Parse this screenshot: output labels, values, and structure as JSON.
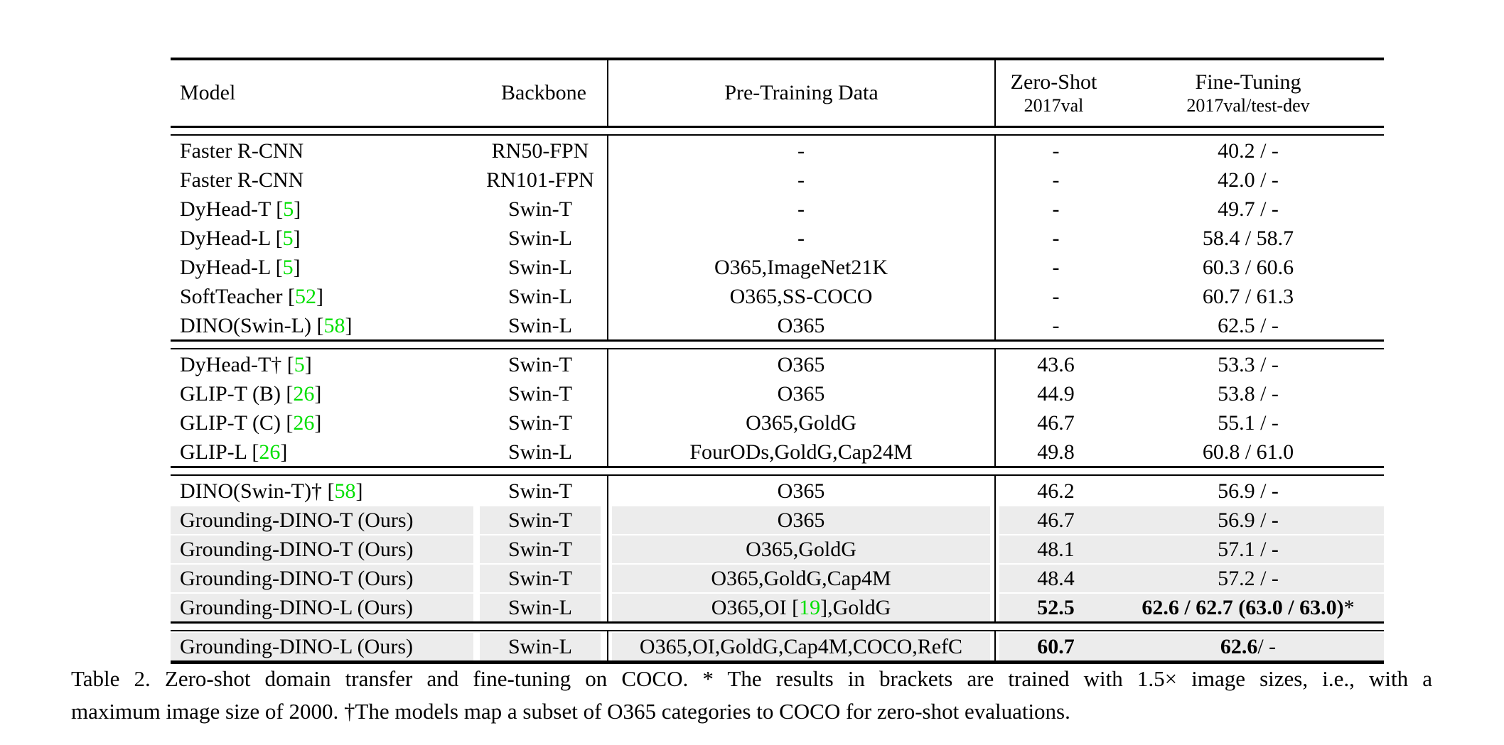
{
  "colors": {
    "citation": "#00E000",
    "row_shade": "#ECECEC",
    "text": "#000000",
    "background": "#FFFFFF"
  },
  "table": {
    "columns": [
      {
        "key": "model",
        "label": "Model",
        "align": "left"
      },
      {
        "key": "backbone",
        "label": "Backbone",
        "align": "center"
      },
      {
        "key": "pretraining",
        "label": "Pre-Training Data",
        "align": "center"
      },
      {
        "key": "zeroshot",
        "label": "Zero-Shot",
        "sublabel": "2017val",
        "align": "center"
      },
      {
        "key": "finetuning",
        "label": "Fine-Tuning",
        "sublabel": "2017val/test-dev",
        "align": "center"
      }
    ],
    "groups": [
      {
        "rows": [
          {
            "cells": [
              "Faster R-CNN",
              "RN50-FPN",
              "-",
              "-",
              "40.2 / -"
            ]
          },
          {
            "cells": [
              "Faster R-CNN",
              "RN101-FPN",
              "-",
              "-",
              "42.0 / -"
            ]
          },
          {
            "cells": [
              [
                {
                  "t": "DyHead-T ["
                },
                {
                  "t": "5",
                  "c": "citation"
                },
                {
                  "t": "]"
                }
              ],
              "Swin-T",
              "-",
              "-",
              "49.7 / -"
            ]
          },
          {
            "cells": [
              [
                {
                  "t": "DyHead-L ["
                },
                {
                  "t": "5",
                  "c": "citation"
                },
                {
                  "t": "]"
                }
              ],
              "Swin-L",
              "-",
              "-",
              "58.4 / 58.7"
            ]
          },
          {
            "cells": [
              [
                {
                  "t": "DyHead-L ["
                },
                {
                  "t": "5",
                  "c": "citation"
                },
                {
                  "t": "]"
                }
              ],
              "Swin-L",
              "O365,ImageNet21K",
              "-",
              "60.3 / 60.6"
            ]
          },
          {
            "cells": [
              [
                {
                  "t": "SoftTeacher ["
                },
                {
                  "t": "52",
                  "c": "citation"
                },
                {
                  "t": "]"
                }
              ],
              "Swin-L",
              "O365,SS-COCO",
              "-",
              "60.7 / 61.3"
            ]
          },
          {
            "cells": [
              [
                {
                  "t": "DINO(Swin-L) ["
                },
                {
                  "t": "58",
                  "c": "citation"
                },
                {
                  "t": "]"
                }
              ],
              "Swin-L",
              "O365",
              "-",
              "62.5 / -"
            ]
          }
        ]
      },
      {
        "rows": [
          {
            "cells": [
              [
                {
                  "t": "DyHead-T† ["
                },
                {
                  "t": "5",
                  "c": "citation"
                },
                {
                  "t": "]"
                }
              ],
              "Swin-T",
              "O365",
              "43.6",
              "53.3 / -"
            ]
          },
          {
            "cells": [
              [
                {
                  "t": "GLIP-T (B) ["
                },
                {
                  "t": "26",
                  "c": "citation"
                },
                {
                  "t": "]"
                }
              ],
              "Swin-T",
              "O365",
              "44.9",
              "53.8 / -"
            ]
          },
          {
            "cells": [
              [
                {
                  "t": "GLIP-T (C) ["
                },
                {
                  "t": "26",
                  "c": "citation"
                },
                {
                  "t": "]"
                }
              ],
              "Swin-T",
              "O365,GoldG",
              "46.7",
              "55.1 / -"
            ]
          },
          {
            "cells": [
              [
                {
                  "t": "GLIP-L ["
                },
                {
                  "t": "26",
                  "c": "citation"
                },
                {
                  "t": "]"
                }
              ],
              "Swin-L",
              "FourODs,GoldG,Cap24M",
              "49.8",
              "60.8 / 61.0"
            ]
          }
        ]
      },
      {
        "rows": [
          {
            "cells": [
              [
                {
                  "t": "DINO(Swin-T)† ["
                },
                {
                  "t": "58",
                  "c": "citation"
                },
                {
                  "t": "]"
                }
              ],
              "Swin-T",
              "O365",
              "46.2",
              "56.9 / -"
            ]
          },
          {
            "shaded": true,
            "cells": [
              "Grounding-DINO-T (Ours)",
              "Swin-T",
              "O365",
              "46.7",
              "56.9 / -"
            ]
          },
          {
            "shaded": true,
            "cells": [
              "Grounding-DINO-T (Ours)",
              "Swin-T",
              "O365,GoldG",
              "48.1",
              "57.1 / -"
            ]
          },
          {
            "shaded": true,
            "cells": [
              "Grounding-DINO-T (Ours)",
              "Swin-T",
              "O365,GoldG,Cap4M",
              "48.4",
              "57.2 / -"
            ]
          },
          {
            "shaded": true,
            "cells": [
              "Grounding-DINO-L (Ours)",
              "Swin-L",
              [
                {
                  "t": "O365,OI ["
                },
                {
                  "t": "19",
                  "c": "citation"
                },
                {
                  "t": "],GoldG"
                }
              ],
              [
                {
                  "t": "52.5",
                  "b": true
                }
              ],
              [
                {
                  "t": "62.6 / 62.7 (63.0 / 63.0)",
                  "b": true
                },
                {
                  "t": "*"
                }
              ]
            ]
          }
        ]
      },
      {
        "rows": [
          {
            "shaded": true,
            "cells": [
              "Grounding-DINO-L (Ours)",
              "Swin-L",
              "O365,OI,GoldG,Cap4M,COCO,RefC",
              [
                {
                  "t": "60.7",
                  "b": true
                }
              ],
              [
                {
                  "t": "62.6",
                  "b": true
                },
                {
                  "t": " / -"
                }
              ]
            ]
          }
        ]
      }
    ]
  },
  "caption": {
    "line1": "Table 2.  Zero-shot domain transfer and fine-tuning on COCO. * The results in brackets are trained with 1.5× image sizes, i.e., with a",
    "line2": "maximum image size of 2000. †The models map a subset of O365 categories to COCO for zero-shot evaluations."
  }
}
